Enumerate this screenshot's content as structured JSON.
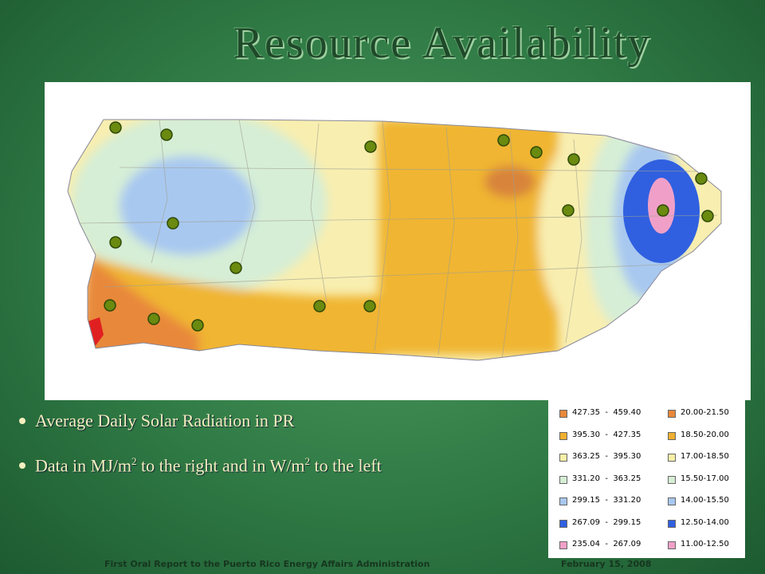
{
  "header": {
    "title": "Resource Availability"
  },
  "bullets": [
    {
      "parts": [
        "Average Daily Solar Radiation in PR"
      ]
    },
    {
      "parts": [
        "Data in MJ/m",
        "2",
        " to the right and in W/m",
        "2",
        " to the left"
      ]
    }
  ],
  "legend": {
    "left": [
      {
        "color": "#e8883a",
        "range": "427.35  -  459.40"
      },
      {
        "color": "#f0b030",
        "range": "395.30  -  427.35"
      },
      {
        "color": "#f8f0a8",
        "range": "363.25  -  395.30"
      },
      {
        "color": "#d6eed6",
        "range": "331.20  -  363.25"
      },
      {
        "color": "#a8c8f0",
        "range": "299.15  -  331.20"
      },
      {
        "color": "#3060e0",
        "range": "267.09  -  299.15"
      },
      {
        "color": "#f0a0c8",
        "range": "235.04  -  267.09"
      }
    ],
    "right": [
      {
        "color": "#e8883a",
        "range": "20.00-21.50"
      },
      {
        "color": "#f0b030",
        "range": "18.50-20.00"
      },
      {
        "color": "#f8f0a8",
        "range": "17.00-18.50"
      },
      {
        "color": "#d6eed6",
        "range": "15.50-17.00"
      },
      {
        "color": "#a8c8f0",
        "range": "14.00-15.50"
      },
      {
        "color": "#3060e0",
        "range": "12.50-14.00"
      },
      {
        "color": "#f0a0c8",
        "range": "11.00-12.50"
      }
    ]
  },
  "footer": {
    "left": "First Oral Report to the Puerto Rico Energy Affairs Administration",
    "right": "February 15, 2008"
  }
}
